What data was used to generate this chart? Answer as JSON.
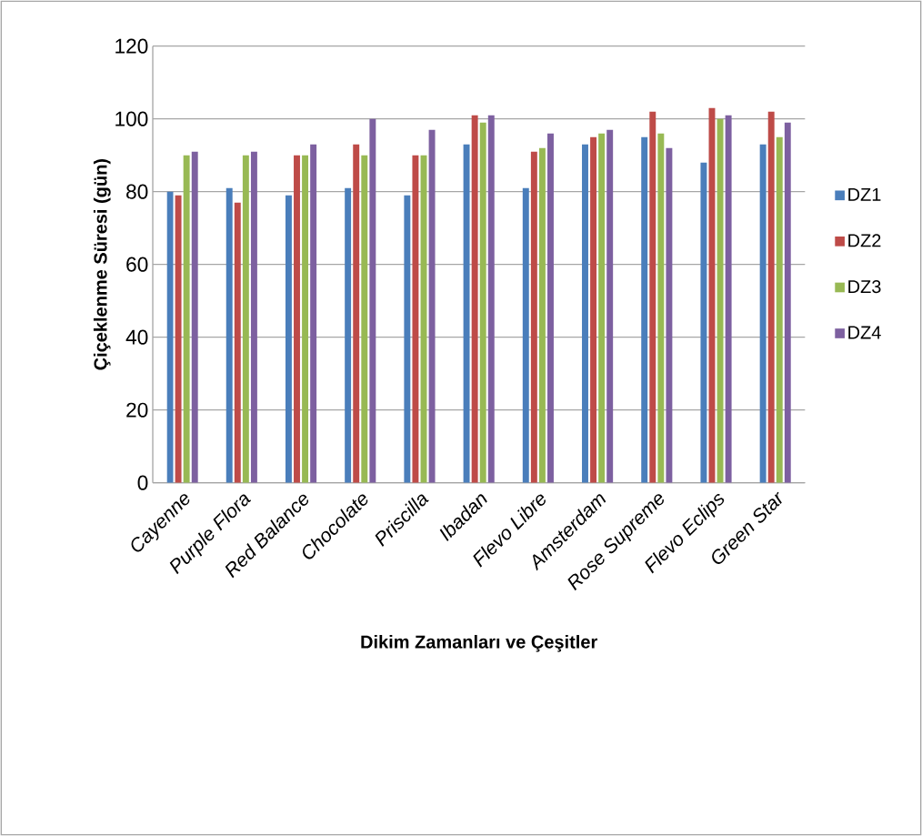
{
  "chart_data": {
    "type": "bar",
    "xlabel": "Dikim Zamanları ve Çeşitler",
    "ylabel": "Çiçeklenme Süresi (gün)",
    "categories": [
      "Cayenne",
      "Purple Flora",
      "Red Balance",
      "Chocolate",
      "Priscilla",
      "Ibadan",
      "Flevo Libre",
      "Amsterdam",
      "Rose Supreme",
      "Flevo Eclips",
      "Green Star"
    ],
    "series": [
      {
        "name": "DZ1",
        "color": "#4a7ebb",
        "values": [
          80,
          81,
          79,
          81,
          79,
          93,
          81,
          93,
          95,
          88,
          93
        ]
      },
      {
        "name": "DZ2",
        "color": "#be4b48",
        "values": [
          79,
          77,
          90,
          93,
          90,
          101,
          91,
          95,
          102,
          103,
          102
        ]
      },
      {
        "name": "DZ3",
        "color": "#98b954",
        "values": [
          90,
          90,
          90,
          90,
          90,
          99,
          92,
          96,
          96,
          100,
          95
        ]
      },
      {
        "name": "DZ4",
        "color": "#7d60a0",
        "values": [
          91,
          91,
          93,
          100,
          97,
          101,
          96,
          97,
          92,
          101,
          99
        ]
      }
    ],
    "ylim": [
      0,
      120
    ],
    "yticks": [
      0,
      20,
      40,
      60,
      80,
      100,
      120
    ],
    "grid": "y",
    "legend": "right"
  }
}
